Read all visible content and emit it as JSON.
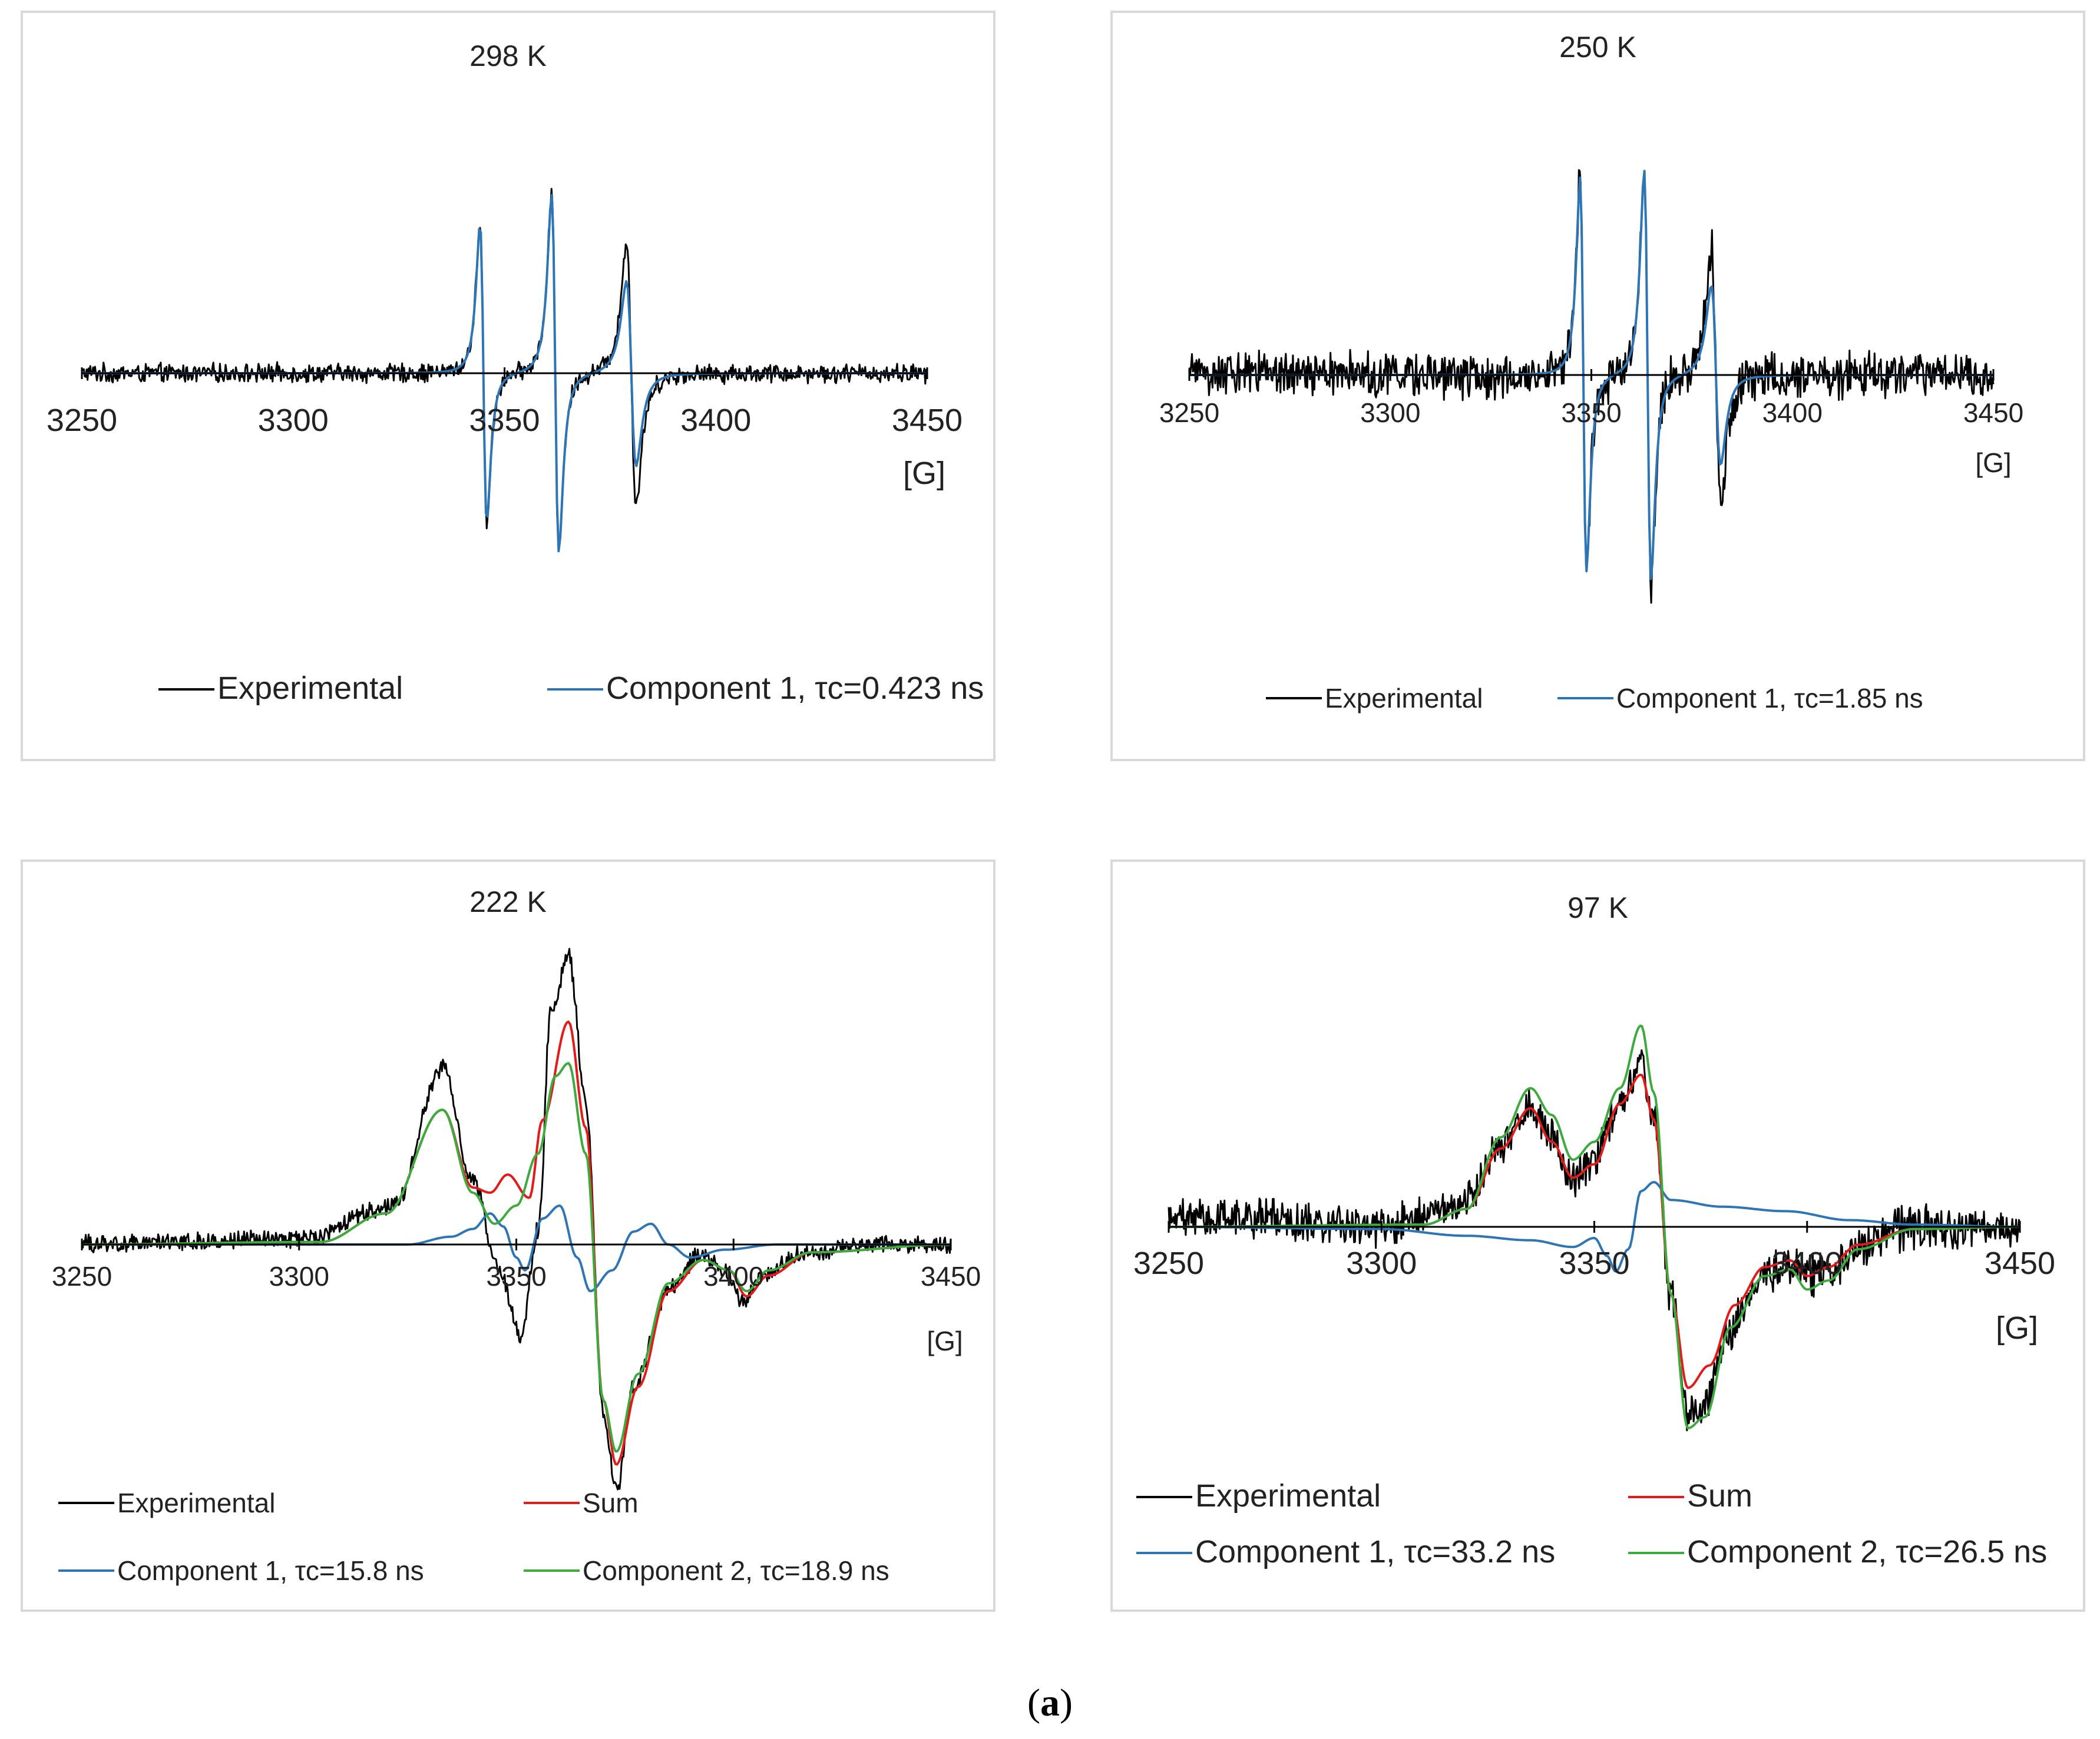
{
  "caption": {
    "open": "(",
    "letter": "a",
    "close": ")"
  },
  "colors": {
    "experimental": "#000000",
    "component1": "#2e75b6",
    "component2": "#3daa3d",
    "sum": "#e21a1a",
    "axis": "#000000",
    "border": "#d9d9d9"
  },
  "chart_data": [
    {
      "type": "line",
      "title": "298 K",
      "xlabel": "[G]",
      "xlim": [
        3250,
        3450
      ],
      "ylim": [
        -1.1,
        1.1
      ],
      "xticks": [
        "3250",
        "3300",
        "3350",
        "3400",
        "3450"
      ],
      "legend": [
        "Experimental",
        "Component 1, τc=0.423 ns"
      ],
      "legend_placement": "bottom",
      "noise": 0.045,
      "lines": [
        {
          "x0": 3345,
          "h": 1.0,
          "w": 1.4
        },
        {
          "x0": 3362,
          "h": 1.2,
          "w": 1.5
        },
        {
          "x0": 3380,
          "h": 0.62,
          "w": 2.0
        }
      ],
      "series": [
        {
          "name": "Experimental",
          "role": "experimental",
          "scale": [
            1.0,
            1.0,
            1.4
          ]
        },
        {
          "name": "Component 1, τc=0.423 ns",
          "role": "component1",
          "scale": [
            1.0,
            1.0,
            1.0
          ]
        }
      ]
    },
    {
      "type": "line",
      "title": "250 K",
      "xlabel": "[G]",
      "xlim": [
        3250,
        3450
      ],
      "ylim": [
        -1.2,
        1.2
      ],
      "xticks": [
        "3250",
        "3300",
        "3350",
        "3400",
        "3450"
      ],
      "legend": [
        "Experimental",
        "Component 1, τc=1.85 ns"
      ],
      "legend_placement": "bottom",
      "noise": 0.1,
      "lines": [
        {
          "x0": 3348,
          "h": 1.2,
          "w": 1.4
        },
        {
          "x0": 3364,
          "h": 1.25,
          "w": 1.5
        },
        {
          "x0": 3381,
          "h": 0.55,
          "w": 2.0
        }
      ],
      "series": [
        {
          "name": "Experimental",
          "role": "experimental",
          "scale": [
            1.0,
            1.0,
            1.45
          ]
        },
        {
          "name": "Component 1, τc=1.85 ns",
          "role": "component1",
          "scale": [
            1.0,
            1.0,
            1.0
          ]
        }
      ]
    },
    {
      "type": "line",
      "title": "222 K",
      "xlabel": "[G]",
      "xlim": [
        3250,
        3450
      ],
      "ylim": [
        -1.0,
        1.2
      ],
      "xticks": [
        "3250",
        "3300",
        "3350",
        "3400",
        "3450"
      ],
      "legend": [
        "Experimental",
        "Sum",
        "Component 1, τc=15.8 ns",
        "Component 2, τc=18.9 ns"
      ],
      "legend_placement": "bottom",
      "noise": 0.03,
      "series": [
        {
          "name": "Experimental",
          "role": "experimental",
          "points": [
            [
              3250,
              0
            ],
            [
              3300,
              0.02
            ],
            [
              3322,
              0.15
            ],
            [
              3333,
              0.68
            ],
            [
              3340,
              0.25
            ],
            [
              3346,
              -0.1
            ],
            [
              3351,
              -0.35
            ],
            [
              3355,
              0.05
            ],
            [
              3358,
              0.9
            ],
            [
              3362,
              1.12
            ],
            [
              3366,
              0.55
            ],
            [
              3370,
              -0.65
            ],
            [
              3373,
              -0.95
            ],
            [
              3377,
              -0.55
            ],
            [
              3385,
              -0.18
            ],
            [
              3392,
              -0.04
            ],
            [
              3398,
              -0.1
            ],
            [
              3402,
              -0.22
            ],
            [
              3407,
              -0.12
            ],
            [
              3415,
              -0.04
            ],
            [
              3430,
              0
            ],
            [
              3450,
              0
            ]
          ]
        },
        {
          "name": "Sum",
          "role": "sum",
          "points": [
            [
              3250,
              0
            ],
            [
              3305,
              0.01
            ],
            [
              3320,
              0.12
            ],
            [
              3333,
              0.52
            ],
            [
              3340,
              0.22
            ],
            [
              3344,
              0.2
            ],
            [
              3348,
              0.27
            ],
            [
              3353,
              0.18
            ],
            [
              3356,
              0.48
            ],
            [
              3362,
              0.86
            ],
            [
              3366,
              0.45
            ],
            [
              3370,
              -0.6
            ],
            [
              3373,
              -0.85
            ],
            [
              3378,
              -0.55
            ],
            [
              3385,
              -0.18
            ],
            [
              3393,
              -0.06
            ],
            [
              3399,
              -0.1
            ],
            [
              3403,
              -0.2
            ],
            [
              3408,
              -0.12
            ],
            [
              3418,
              -0.03
            ],
            [
              3450,
              0
            ]
          ]
        },
        {
          "name": "Component 1, τc=15.8 ns",
          "role": "component1",
          "points": [
            [
              3250,
              0
            ],
            [
              3325,
              0
            ],
            [
              3335,
              0.03
            ],
            [
              3340,
              0.06
            ],
            [
              3344,
              0.12
            ],
            [
              3347,
              0.07
            ],
            [
              3350,
              -0.05
            ],
            [
              3352,
              -0.1
            ],
            [
              3356,
              0.1
            ],
            [
              3360,
              0.15
            ],
            [
              3364,
              -0.05
            ],
            [
              3367,
              -0.18
            ],
            [
              3372,
              -0.1
            ],
            [
              3377,
              0.05
            ],
            [
              3381,
              0.08
            ],
            [
              3385,
              0.0
            ],
            [
              3390,
              -0.05
            ],
            [
              3398,
              -0.02
            ],
            [
              3410,
              0
            ],
            [
              3450,
              0
            ]
          ]
        },
        {
          "name": "Component 2, τc=18.9 ns",
          "role": "component2",
          "points": [
            [
              3250,
              0
            ],
            [
              3305,
              0.01
            ],
            [
              3320,
              0.12
            ],
            [
              3333,
              0.52
            ],
            [
              3340,
              0.2
            ],
            [
              3345,
              0.08
            ],
            [
              3350,
              0.15
            ],
            [
              3355,
              0.35
            ],
            [
              3359,
              0.65
            ],
            [
              3362,
              0.7
            ],
            [
              3366,
              0.35
            ],
            [
              3370,
              -0.6
            ],
            [
              3373,
              -0.8
            ],
            [
              3378,
              -0.5
            ],
            [
              3385,
              -0.15
            ],
            [
              3393,
              -0.06
            ],
            [
              3399,
              -0.1
            ],
            [
              3403,
              -0.18
            ],
            [
              3408,
              -0.1
            ],
            [
              3418,
              -0.03
            ],
            [
              3450,
              0
            ]
          ]
        }
      ]
    },
    {
      "type": "line",
      "title": "97 K",
      "xlabel": "[G]",
      "xlim": [
        3250,
        3450
      ],
      "ylim": [
        -1.0,
        1.0
      ],
      "xticks": [
        "3250",
        "3300",
        "3350",
        "3400",
        "3450"
      ],
      "legend": [
        "Experimental",
        "Sum",
        "Component 1, τc=33.2 ns",
        "Component 2, τc=26.5 ns"
      ],
      "legend_placement": "bottom",
      "noise": 0.08,
      "series": [
        {
          "name": "Experimental",
          "role": "experimental",
          "points": [
            [
              3250,
              0.05
            ],
            [
              3300,
              0.0
            ],
            [
              3318,
              0.08
            ],
            [
              3328,
              0.35
            ],
            [
              3335,
              0.55
            ],
            [
              3340,
              0.4
            ],
            [
              3345,
              0.22
            ],
            [
              3350,
              0.3
            ],
            [
              3356,
              0.55
            ],
            [
              3361,
              0.72
            ],
            [
              3364,
              0.5
            ],
            [
              3368,
              -0.3
            ],
            [
              3372,
              -0.85
            ],
            [
              3376,
              -0.8
            ],
            [
              3382,
              -0.45
            ],
            [
              3390,
              -0.2
            ],
            [
              3396,
              -0.15
            ],
            [
              3400,
              -0.22
            ],
            [
              3405,
              -0.2
            ],
            [
              3412,
              -0.08
            ],
            [
              3425,
              0.0
            ],
            [
              3450,
              0.0
            ]
          ]
        },
        {
          "name": "Sum",
          "role": "sum",
          "points": [
            [
              3250,
              0
            ],
            [
              3310,
              0.01
            ],
            [
              3320,
              0.08
            ],
            [
              3328,
              0.35
            ],
            [
              3335,
              0.53
            ],
            [
              3340,
              0.38
            ],
            [
              3345,
              0.22
            ],
            [
              3350,
              0.28
            ],
            [
              3356,
              0.55
            ],
            [
              3361,
              0.68
            ],
            [
              3364,
              0.48
            ],
            [
              3368,
              -0.3
            ],
            [
              3372,
              -0.72
            ],
            [
              3377,
              -0.62
            ],
            [
              3383,
              -0.35
            ],
            [
              3390,
              -0.18
            ],
            [
              3396,
              -0.15
            ],
            [
              3400,
              -0.22
            ],
            [
              3405,
              -0.18
            ],
            [
              3412,
              -0.08
            ],
            [
              3425,
              -0.01
            ],
            [
              3450,
              0
            ]
          ]
        },
        {
          "name": "Component 1, τc=33.2 ns",
          "role": "component1",
          "points": [
            [
              3250,
              0
            ],
            [
              3300,
              -0.01
            ],
            [
              3320,
              -0.04
            ],
            [
              3335,
              -0.06
            ],
            [
              3345,
              -0.09
            ],
            [
              3350,
              -0.05
            ],
            [
              3353,
              -0.13
            ],
            [
              3355,
              -0.2
            ],
            [
              3358,
              -0.1
            ],
            [
              3361,
              0.16
            ],
            [
              3364,
              0.2
            ],
            [
              3368,
              0.12
            ],
            [
              3380,
              0.09
            ],
            [
              3395,
              0.07
            ],
            [
              3410,
              0.03
            ],
            [
              3425,
              0.01
            ],
            [
              3450,
              0
            ]
          ]
        },
        {
          "name": "Component 2, τc=26.5 ns",
          "role": "component2",
          "points": [
            [
              3250,
              0
            ],
            [
              3310,
              0.01
            ],
            [
              3320,
              0.08
            ],
            [
              3328,
              0.4
            ],
            [
              3335,
              0.62
            ],
            [
              3340,
              0.5
            ],
            [
              3345,
              0.3
            ],
            [
              3350,
              0.38
            ],
            [
              3356,
              0.62
            ],
            [
              3361,
              0.9
            ],
            [
              3364,
              0.6
            ],
            [
              3368,
              -0.3
            ],
            [
              3372,
              -0.9
            ],
            [
              3376,
              -0.85
            ],
            [
              3382,
              -0.45
            ],
            [
              3390,
              -0.22
            ],
            [
              3396,
              -0.19
            ],
            [
              3400,
              -0.28
            ],
            [
              3405,
              -0.24
            ],
            [
              3412,
              -0.1
            ],
            [
              3425,
              -0.01
            ],
            [
              3450,
              0
            ]
          ]
        }
      ]
    }
  ]
}
